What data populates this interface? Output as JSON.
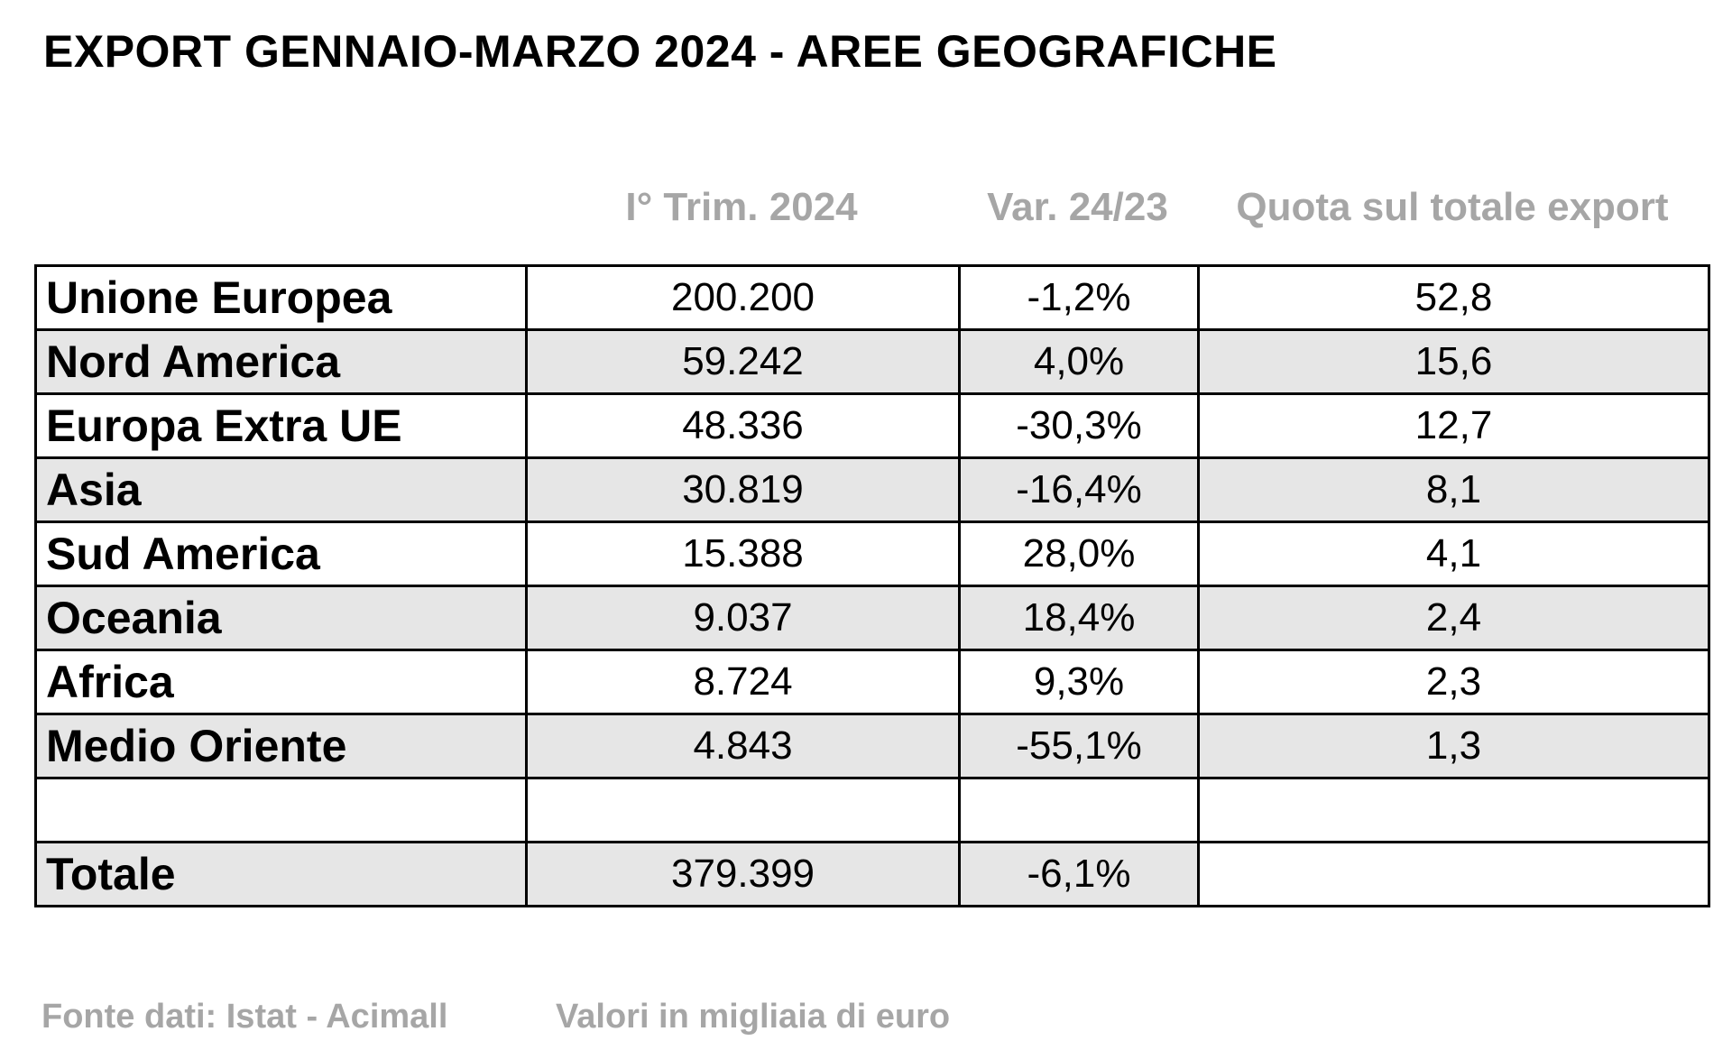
{
  "title": "EXPORT GENNAIO-MARZO 2024 - AREE GEOGRAFICHE",
  "headers": {
    "trim": "I° Trim. 2024",
    "var": "Var. 24/23",
    "quota": "Quota sul totale export"
  },
  "rows": [
    {
      "area": "Unione Europea",
      "trim": "200.200",
      "var": "-1,2%",
      "quota": "52,8"
    },
    {
      "area": "Nord America",
      "trim": "59.242",
      "var": "4,0%",
      "quota": "15,6"
    },
    {
      "area": "Europa Extra UE",
      "trim": "48.336",
      "var": "-30,3%",
      "quota": "12,7"
    },
    {
      "area": "Asia",
      "trim": "30.819",
      "var": "-16,4%",
      "quota": "8,1"
    },
    {
      "area": "Sud America",
      "trim": "15.388",
      "var": "28,0%",
      "quota": "4,1"
    },
    {
      "area": "Oceania",
      "trim": "9.037",
      "var": "18,4%",
      "quota": "2,4"
    },
    {
      "area": "Africa",
      "trim": "8.724",
      "var": "9,3%",
      "quota": "2,3"
    },
    {
      "area": "Medio Oriente",
      "trim": "4.843",
      "var": "-55,1%",
      "quota": "1,3"
    }
  ],
  "total": {
    "area": "Totale",
    "trim": "379.399",
    "var": "-6,1%",
    "quota": ""
  },
  "footer": {
    "source": "Fonte dati: Istat - Acimall",
    "unit": "Valori in migliaia di euro"
  },
  "colors": {
    "shade": "#e6e6e6",
    "header_text": "#a6a6a6"
  }
}
